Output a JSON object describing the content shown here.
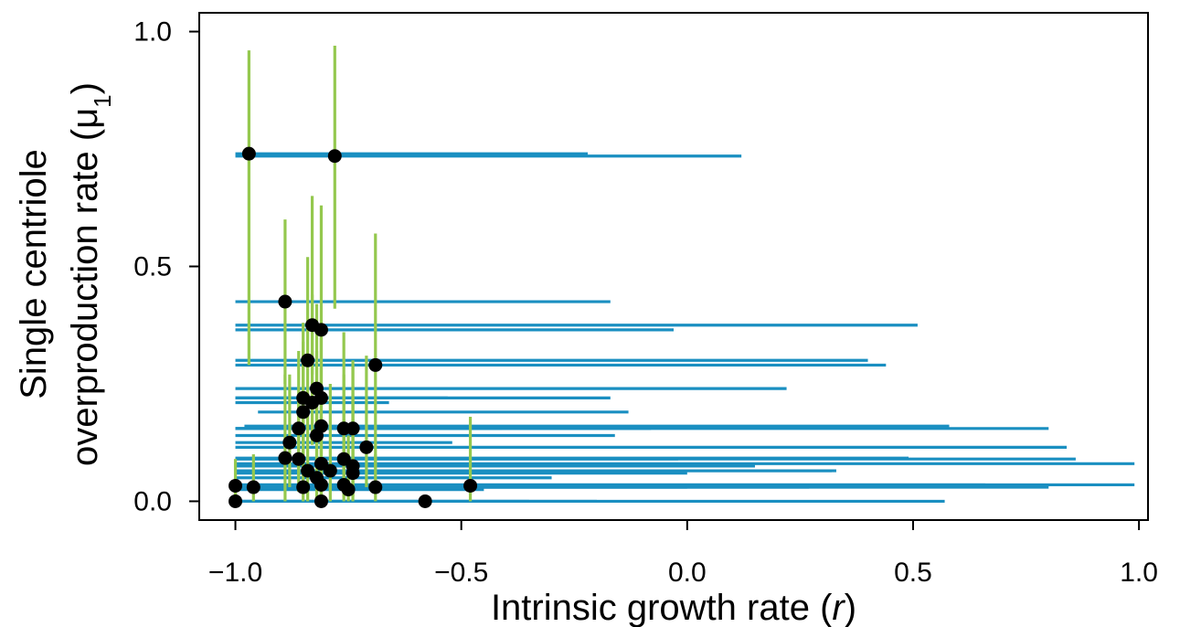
{
  "chart_data": {
    "type": "scatter",
    "title": "",
    "xlabel": "Intrinsic growth rate (r)",
    "ylabel_line1": "Single centriole",
    "ylabel_line2": "overproduction rate (μ1)",
    "xlim": [
      -1.08,
      1.02
    ],
    "ylim": [
      -0.04,
      1.04
    ],
    "x_ticks": [
      -1.0,
      -0.5,
      0.0,
      0.5,
      1.0
    ],
    "x_tick_labels": [
      "−1.0",
      "−0.5",
      "0.0",
      "0.5",
      "1.0"
    ],
    "y_ticks": [
      0.0,
      0.5,
      1.0
    ],
    "y_tick_labels": [
      "0.0",
      "0.5",
      "1.0"
    ],
    "grid": false,
    "colors": {
      "point": "#000000",
      "x_interval": "#1a8fc1",
      "y_interval": "#94c84e"
    },
    "points": [
      {
        "x": -0.97,
        "y": 0.74,
        "xlo": -1.0,
        "xhi": -0.22,
        "ylo": 0.29,
        "yhi": 0.96
      },
      {
        "x": -0.78,
        "y": 0.735,
        "xlo": -1.0,
        "xhi": 0.12,
        "ylo": 0.41,
        "yhi": 0.97
      },
      {
        "x": -0.89,
        "y": 0.425,
        "xlo": -1.0,
        "xhi": -0.17,
        "ylo": 0.25,
        "yhi": 0.6
      },
      {
        "x": -0.83,
        "y": 0.375,
        "xlo": -1.0,
        "xhi": 0.51,
        "ylo": 0.27,
        "yhi": 0.65
      },
      {
        "x": -0.81,
        "y": 0.365,
        "xlo": -1.0,
        "xhi": -0.03,
        "ylo": 0.25,
        "yhi": 0.63
      },
      {
        "x": -0.84,
        "y": 0.3,
        "xlo": -1.0,
        "xhi": 0.4,
        "ylo": 0.2,
        "yhi": 0.52
      },
      {
        "x": -0.69,
        "y": 0.29,
        "xlo": -1.0,
        "xhi": 0.44,
        "ylo": 0.07,
        "yhi": 0.57
      },
      {
        "x": -0.82,
        "y": 0.24,
        "xlo": -1.0,
        "xhi": 0.22,
        "ylo": 0.12,
        "yhi": 0.42
      },
      {
        "x": -0.85,
        "y": 0.22,
        "xlo": -1.0,
        "xhi": -0.53,
        "ylo": 0.12,
        "yhi": 0.38
      },
      {
        "x": -0.81,
        "y": 0.22,
        "xlo": -1.0,
        "xhi": -0.17,
        "ylo": 0.1,
        "yhi": 0.36
      },
      {
        "x": -0.83,
        "y": 0.21,
        "xlo": -1.0,
        "xhi": -0.66,
        "ylo": 0.12,
        "yhi": 0.44
      },
      {
        "x": -0.85,
        "y": 0.19,
        "xlo": -0.95,
        "xhi": -0.13,
        "ylo": 0.08,
        "yhi": 0.34
      },
      {
        "x": -0.86,
        "y": 0.155,
        "xlo": -1.0,
        "xhi": 0.8,
        "ylo": 0.05,
        "yhi": 0.32
      },
      {
        "x": -0.81,
        "y": 0.16,
        "xlo": -0.98,
        "xhi": 0.58,
        "ylo": 0.05,
        "yhi": 0.36
      },
      {
        "x": -0.76,
        "y": 0.155,
        "xlo": -1.0,
        "xhi": -0.41,
        "ylo": 0.05,
        "yhi": 0.36
      },
      {
        "x": -0.74,
        "y": 0.155,
        "xlo": -1.0,
        "xhi": -0.08,
        "ylo": 0.04,
        "yhi": 0.3
      },
      {
        "x": -0.82,
        "y": 0.14,
        "xlo": -1.0,
        "xhi": -0.16,
        "ylo": 0.04,
        "yhi": 0.32
      },
      {
        "x": -0.88,
        "y": 0.125,
        "xlo": -1.0,
        "xhi": -0.52,
        "ylo": 0.03,
        "yhi": 0.27
      },
      {
        "x": -0.71,
        "y": 0.115,
        "xlo": -1.0,
        "xhi": 0.84,
        "ylo": 0.03,
        "yhi": 0.31
      },
      {
        "x": -0.89,
        "y": 0.092,
        "xlo": -1.0,
        "xhi": 0.49,
        "ylo": 0.0,
        "yhi": 0.27
      },
      {
        "x": -0.86,
        "y": 0.09,
        "xlo": -1.0,
        "xhi": -0.02,
        "ylo": 0.02,
        "yhi": 0.22
      },
      {
        "x": -0.76,
        "y": 0.09,
        "xlo": -1.0,
        "xhi": 0.86,
        "ylo": 0.01,
        "yhi": 0.27
      },
      {
        "x": -0.81,
        "y": 0.08,
        "xlo": -1.0,
        "xhi": 0.99,
        "ylo": 0.0,
        "yhi": 0.24
      },
      {
        "x": -0.74,
        "y": 0.075,
        "xlo": -1.0,
        "xhi": 0.15,
        "ylo": 0.01,
        "yhi": 0.29
      },
      {
        "x": -0.84,
        "y": 0.065,
        "xlo": -1.0,
        "xhi": 0.32,
        "ylo": 0.0,
        "yhi": 0.22
      },
      {
        "x": -0.79,
        "y": 0.065,
        "xlo": -1.0,
        "xhi": 0.33,
        "ylo": 0.0,
        "yhi": 0.25
      },
      {
        "x": -0.74,
        "y": 0.06,
        "xlo": -1.0,
        "xhi": 0.0,
        "ylo": 0.0,
        "yhi": 0.22
      },
      {
        "x": -0.82,
        "y": 0.05,
        "xlo": -1.0,
        "xhi": -0.3,
        "ylo": 0.0,
        "yhi": 0.2
      },
      {
        "x": -0.81,
        "y": 0.035,
        "xlo": -1.0,
        "xhi": 0.66,
        "ylo": 0.0,
        "yhi": 0.18
      },
      {
        "x": -0.76,
        "y": 0.035,
        "xlo": -1.0,
        "xhi": 0.99,
        "ylo": 0.0,
        "yhi": 0.16
      },
      {
        "x": -1.0,
        "y": 0.033,
        "xlo": -1.0,
        "xhi": 0.63,
        "ylo": 0.0,
        "yhi": 0.09
      },
      {
        "x": -0.96,
        "y": 0.03,
        "xlo": -1.0,
        "xhi": 0.8,
        "ylo": 0.0,
        "yhi": 0.1
      },
      {
        "x": -0.85,
        "y": 0.03,
        "xlo": -1.0,
        "xhi": 0.27,
        "ylo": 0.0,
        "yhi": 0.17
      },
      {
        "x": -0.69,
        "y": 0.03,
        "xlo": -1.0,
        "xhi": 0.0,
        "ylo": 0.0,
        "yhi": 0.1
      },
      {
        "x": -0.48,
        "y": 0.033,
        "xlo": -1.0,
        "xhi": -0.23,
        "ylo": 0.0,
        "yhi": 0.18
      },
      {
        "x": -0.75,
        "y": 0.025,
        "xlo": -1.0,
        "xhi": -0.45,
        "ylo": 0.0,
        "yhi": 0.14
      },
      {
        "x": -1.0,
        "y": 0.0,
        "xlo": -1.0,
        "xhi": 0.57,
        "ylo": 0.0,
        "yhi": 0.05
      },
      {
        "x": -0.81,
        "y": 0.0,
        "xlo": -1.0,
        "xhi": -0.35,
        "ylo": 0.0,
        "yhi": 0.08
      },
      {
        "x": -0.58,
        "y": 0.0,
        "xlo": -1.0,
        "xhi": -0.2,
        "ylo": 0.0,
        "yhi": 0.0
      }
    ]
  }
}
